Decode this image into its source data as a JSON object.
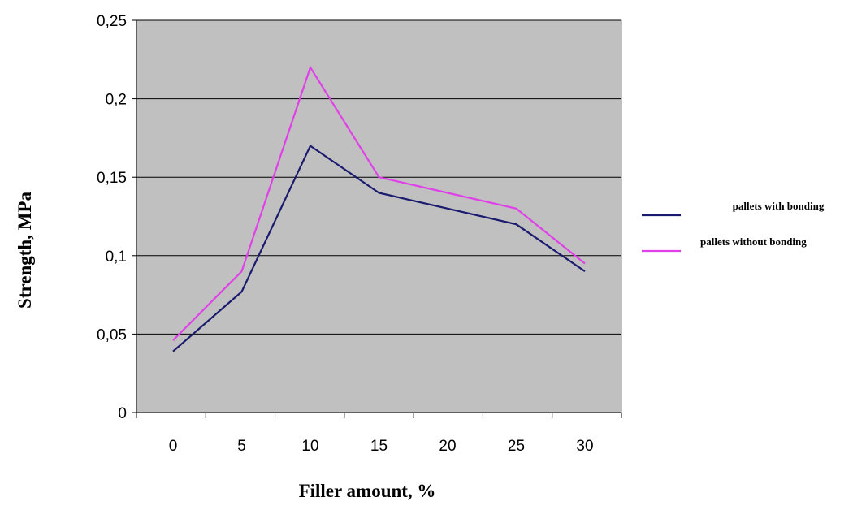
{
  "chart_data": {
    "type": "line",
    "title": "",
    "xlabel": "Filler amount, %",
    "ylabel": "Strength, MPa",
    "x": [
      "0",
      "5",
      "10",
      "15",
      "20",
      "25",
      "30"
    ],
    "xlim": [
      0,
      30
    ],
    "ylim": [
      0,
      0.25
    ],
    "yticks": [
      "0",
      "0,05",
      "0,1",
      "0,15",
      "0,2",
      "0,25"
    ],
    "grid": true,
    "plot_background": "#c0c0c0",
    "legend_position": "right",
    "series": [
      {
        "name": "pallets with bonding",
        "color": "#1a1a6e",
        "points": [
          [
            0,
            0.039
          ],
          [
            5,
            0.077
          ],
          [
            10,
            0.17
          ],
          [
            15,
            0.14
          ],
          [
            20,
            0.13
          ],
          [
            25,
            0.12
          ],
          [
            30,
            0.09
          ]
        ]
      },
      {
        "name": "pallets without bonding",
        "color": "#e040e8",
        "points": [
          [
            0,
            0.046
          ],
          [
            5,
            0.09
          ],
          [
            10,
            0.22
          ],
          [
            15,
            0.15
          ],
          [
            20,
            0.14
          ],
          [
            25,
            0.13
          ],
          [
            30,
            0.095
          ]
        ]
      }
    ]
  }
}
